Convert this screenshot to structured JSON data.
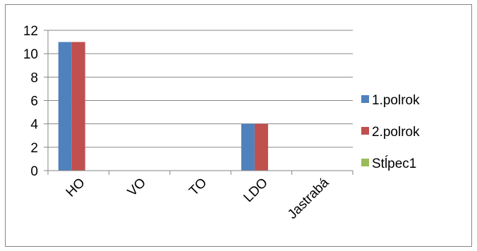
{
  "chart_data": {
    "type": "bar",
    "categories": [
      "HO",
      "VO",
      "TO",
      "LDO",
      "Jastrabá"
    ],
    "series": [
      {
        "name": "1.polrok",
        "values": [
          11,
          0,
          0,
          4,
          0
        ],
        "color": "#4F81BD"
      },
      {
        "name": "2.polrok",
        "values": [
          11,
          0,
          0,
          4,
          0
        ],
        "color": "#C0504D"
      },
      {
        "name": "Stĺpec1",
        "values": [
          0,
          0,
          0,
          0,
          0
        ],
        "color": "#9BBB59"
      }
    ],
    "ylim": [
      0,
      12
    ],
    "yticks": [
      0,
      2,
      4,
      6,
      8,
      10,
      12
    ],
    "grid": true,
    "legend": "right"
  }
}
